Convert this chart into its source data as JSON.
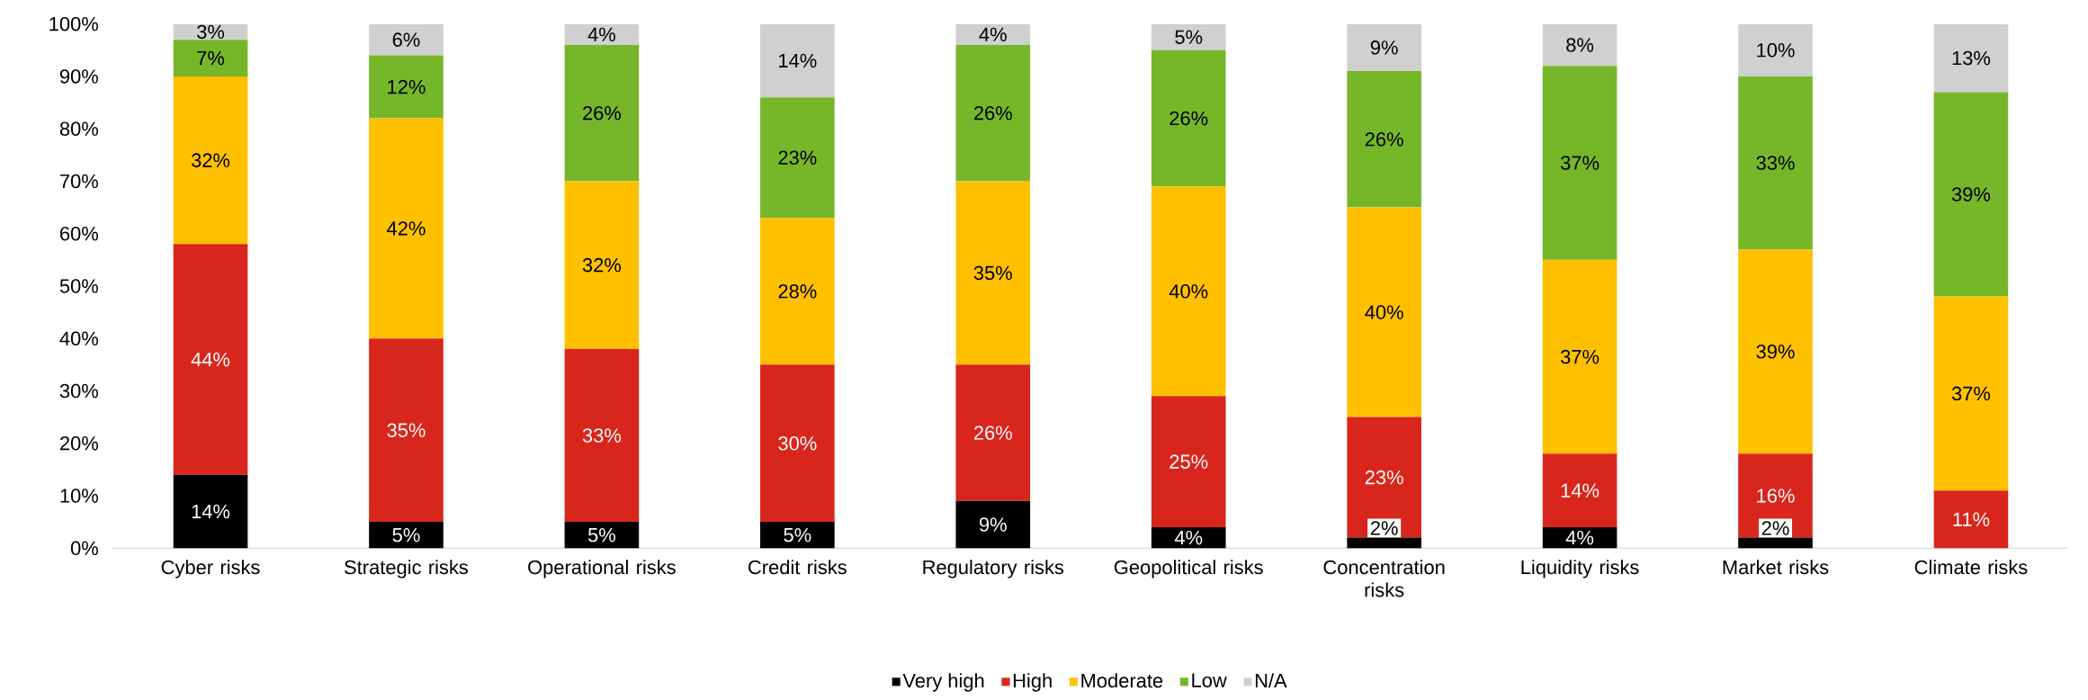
{
  "chart_data": {
    "type": "bar",
    "stacked": true,
    "legend": "bottom",
    "categories": [
      "Cyber risks",
      "Strategic risks",
      "Operational risks",
      "Credit risks",
      "Regulatory risks",
      "Geopolitical risks",
      "Concentration risks",
      "Liquidity risks",
      "Market risks",
      "Climate risks"
    ],
    "ylim": [
      0,
      100
    ],
    "yticks": [
      {
        "value": 0,
        "label": "0%"
      },
      {
        "value": 10,
        "label": "10%"
      },
      {
        "value": 20,
        "label": "20%"
      },
      {
        "value": 30,
        "label": "30%"
      },
      {
        "value": 40,
        "label": "40%"
      },
      {
        "value": 50,
        "label": "50%"
      },
      {
        "value": 60,
        "label": "60%"
      },
      {
        "value": 70,
        "label": "70%"
      },
      {
        "value": 80,
        "label": "80%"
      },
      {
        "value": 90,
        "label": "90%"
      },
      {
        "value": 100,
        "label": "100%"
      }
    ],
    "series": [
      {
        "name": "Very high",
        "color": "#000000",
        "values": [
          14,
          5,
          5,
          5,
          9,
          4,
          2,
          4,
          2,
          0
        ],
        "value_labels": [
          "14%",
          "5%",
          "5%",
          "5%",
          "9%",
          "4%",
          "2%",
          "4%",
          "2%",
          null
        ]
      },
      {
        "name": "High",
        "color": "#d9261c",
        "values": [
          44,
          35,
          33,
          30,
          26,
          25,
          23,
          14,
          16,
          11
        ],
        "value_labels": [
          "44%",
          "35%",
          "33%",
          "30%",
          "26%",
          "25%",
          "23%",
          "14%",
          "16%",
          "11%"
        ]
      },
      {
        "name": "Moderate",
        "color": "#ffc000",
        "values": [
          32,
          42,
          32,
          28,
          35,
          40,
          40,
          37,
          39,
          37
        ],
        "value_labels": [
          "32%",
          "42%",
          "32%",
          "28%",
          "35%",
          "40%",
          "40%",
          "37%",
          "39%",
          "37%"
        ]
      },
      {
        "name": "Low",
        "color": "#76b72a",
        "values": [
          7,
          12,
          26,
          23,
          26,
          26,
          26,
          37,
          33,
          39
        ],
        "value_labels": [
          "7%",
          "12%",
          "26%",
          "23%",
          "26%",
          "26%",
          "26%",
          "37%",
          "33%",
          "39%"
        ]
      },
      {
        "name": "N/A",
        "color": "#d0d0d0",
        "values": [
          3,
          6,
          4,
          14,
          4,
          5,
          9,
          8,
          10,
          13
        ],
        "value_labels": [
          "3%",
          "6%",
          "4%",
          "14%",
          "4%",
          "5%",
          "9%",
          "8%",
          "10%",
          "13%"
        ]
      }
    ]
  }
}
